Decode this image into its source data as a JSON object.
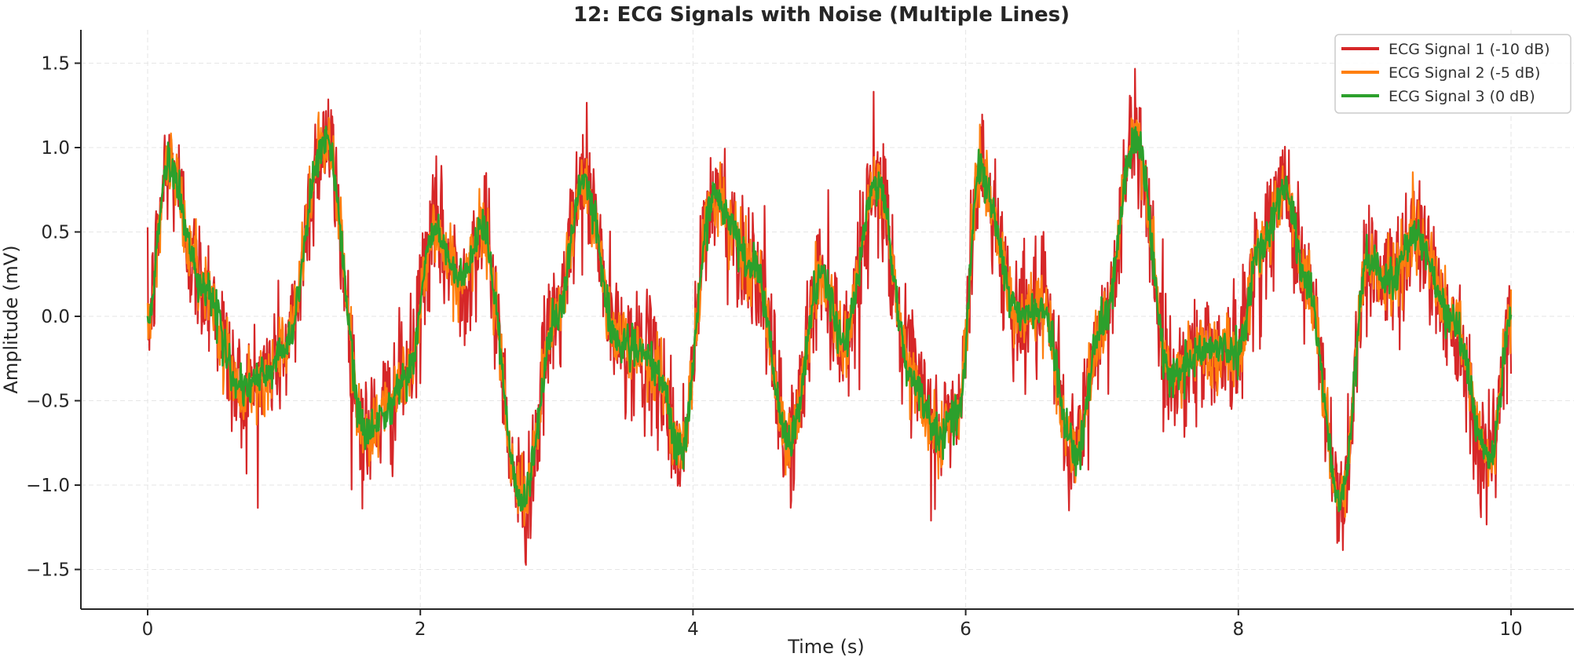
{
  "chart_data": {
    "type": "line",
    "title": "12: ECG Signals with Noise (Multiple Lines)",
    "xlabel": "Time (s)",
    "ylabel": "Amplitude (mV)",
    "xlim": [
      -0.5,
      10.5
    ],
    "ylim": [
      -1.72,
      1.72
    ],
    "xticks": [
      0,
      2,
      4,
      6,
      8,
      10
    ],
    "xtick_labels": [
      "0",
      "2",
      "4",
      "6",
      "8",
      "10"
    ],
    "yticks": [
      -1.5,
      -1.0,
      -0.5,
      0.0,
      0.5,
      1.0,
      1.5
    ],
    "ytick_labels": [
      "−1.5",
      "−1.0",
      "−0.5",
      "0.0",
      "0.5",
      "1.0",
      "1.5"
    ],
    "grid": true,
    "legend_position": "top-right",
    "underlying_signal": {
      "x": [
        0.0,
        0.15,
        0.4,
        0.7,
        0.85,
        1.0,
        1.3,
        1.6,
        1.75,
        1.9,
        2.1,
        2.3,
        2.45,
        2.75,
        3.0,
        3.2,
        3.45,
        3.6,
        3.75,
        3.9,
        4.15,
        4.45,
        4.7,
        4.95,
        5.1,
        5.35,
        5.6,
        5.8,
        5.95,
        6.1,
        6.4,
        6.55,
        6.8,
        7.0,
        7.25,
        7.5,
        7.75,
        8.0,
        8.15,
        8.35,
        8.5,
        8.75,
        8.95,
        9.1,
        9.3,
        9.55,
        9.85,
        10.0
      ],
      "y": [
        0.0,
        0.9,
        0.2,
        -0.45,
        -0.35,
        -0.2,
        1.05,
        -0.7,
        -0.55,
        -0.35,
        0.5,
        0.2,
        0.5,
        -1.1,
        0.0,
        0.8,
        -0.15,
        -0.2,
        -0.35,
        -0.8,
        0.7,
        0.3,
        -0.75,
        0.25,
        -0.15,
        0.8,
        -0.35,
        -0.7,
        -0.55,
        0.85,
        0.0,
        0.05,
        -0.8,
        -0.05,
        1.05,
        -0.35,
        -0.2,
        -0.2,
        0.4,
        0.75,
        0.2,
        -1.1,
        0.35,
        0.2,
        0.5,
        0.0,
        -0.85,
        0.0
      ]
    },
    "series": [
      {
        "name": "ECG Signal 1 (-10 dB)",
        "color": "#d62728",
        "noise": 0.19
      },
      {
        "name": "ECG Signal 2 (-5 dB)",
        "color": "#ff7f0e",
        "noise": 0.1
      },
      {
        "name": "ECG Signal 3 (0 dB)",
        "color": "#2ca02c",
        "noise": 0.055
      }
    ]
  }
}
